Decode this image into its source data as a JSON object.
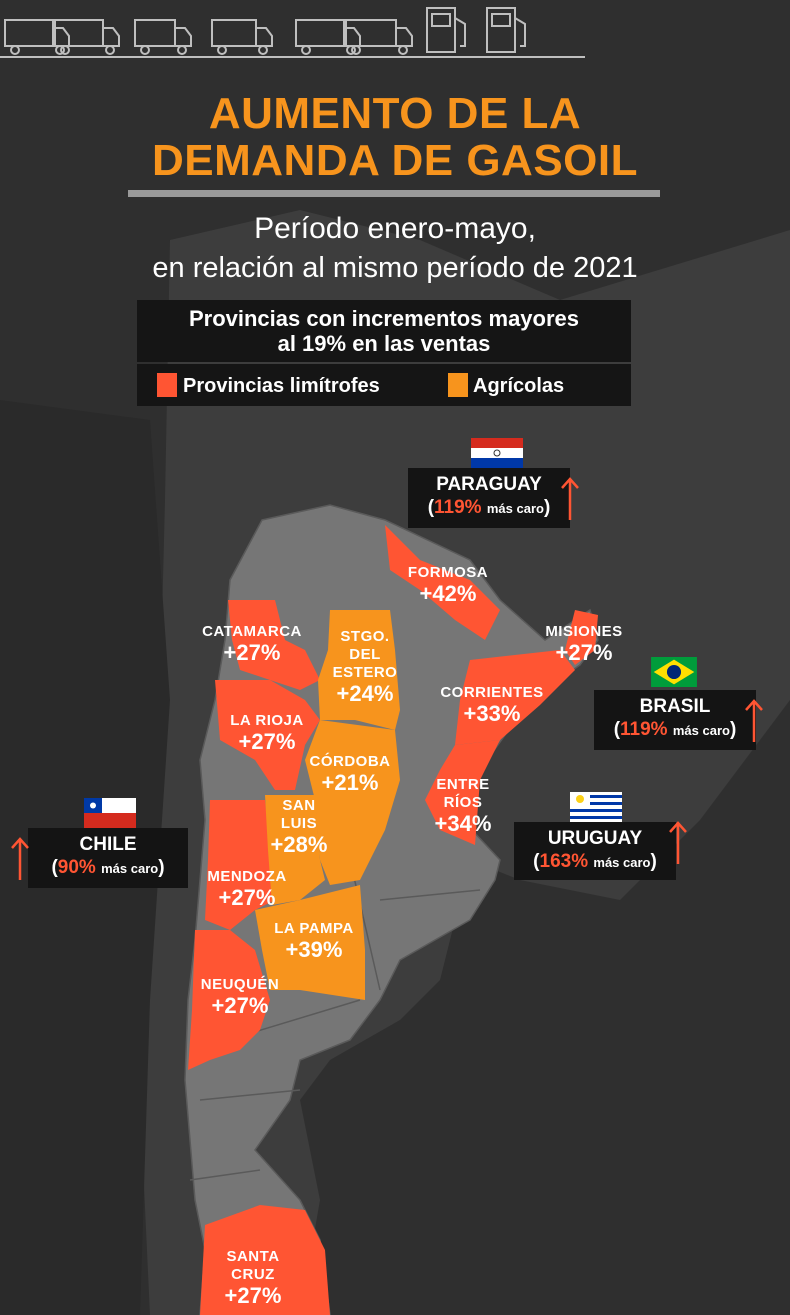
{
  "header": {
    "title_line1": "AUMENTO DE LA",
    "title_line2": "DEMANDA DE GASOIL",
    "subtitle_line1": "Período enero-mayo,",
    "subtitle_line2": "en relación al mismo período de 2021"
  },
  "legend": {
    "title_line1": "Provincias con incrementos mayores",
    "title_line2": "al 19% en las ventas",
    "border_label": "Provincias limítrofes",
    "agri_label": "Agrícolas"
  },
  "colors": {
    "title": "#f7941d",
    "border_provinces": "#ff5533",
    "agricultural_provinces": "#f7941d",
    "background": "#2f2f2f",
    "land": "#777777"
  },
  "provinces": {
    "formosa": {
      "name": "FORMOSA",
      "pct": "+42%",
      "group": "border"
    },
    "misiones": {
      "name": "MISIONES",
      "pct": "+27%",
      "group": "border"
    },
    "catamarca": {
      "name": "CATAMARCA",
      "pct": "+27%",
      "group": "border"
    },
    "santiago": {
      "name1": "STGO.",
      "name2": "DEL",
      "name3": "ESTERO",
      "pct": "+24%",
      "group": "agricultural"
    },
    "corrientes": {
      "name": "CORRIENTES",
      "pct": "+33%",
      "group": "border"
    },
    "la_rioja": {
      "name": "LA RIOJA",
      "pct": "+27%",
      "group": "border"
    },
    "cordoba": {
      "name": "CÓRDOBA",
      "pct": "+21%",
      "group": "agricultural"
    },
    "entre_rios": {
      "name1": "ENTRE",
      "name2": "RÍOS",
      "pct": "+34%",
      "group": "border"
    },
    "san_luis": {
      "name1": "SAN",
      "name2": "LUIS",
      "pct": "+28%",
      "group": "agricultural"
    },
    "mendoza": {
      "name": "MENDOZA",
      "pct": "+27%",
      "group": "border"
    },
    "la_pampa": {
      "name": "LA PAMPA",
      "pct": "+39%",
      "group": "agricultural"
    },
    "neuquen": {
      "name": "NEUQUÉN",
      "pct": "+27%",
      "group": "border"
    },
    "santa_cruz": {
      "name1": "SANTA",
      "name2": "CRUZ",
      "pct": "+27%",
      "group": "border"
    }
  },
  "countries": {
    "paraguay": {
      "name": "PARAGUAY",
      "pct": "119%",
      "note": "más caro"
    },
    "brasil": {
      "name": "BRASIL",
      "pct": "119%",
      "note": "más caro"
    },
    "chile": {
      "name": "CHILE",
      "pct": "90%",
      "note": "más caro"
    },
    "uruguay": {
      "name": "URUGUAY",
      "pct": "163%",
      "note": "más caro"
    }
  },
  "icons": [
    "truck-icon",
    "fuel-pump-icon",
    "arrow-up-icon",
    "flag-paraguay-icon",
    "flag-brazil-icon",
    "flag-chile-icon",
    "flag-uruguay-icon"
  ]
}
